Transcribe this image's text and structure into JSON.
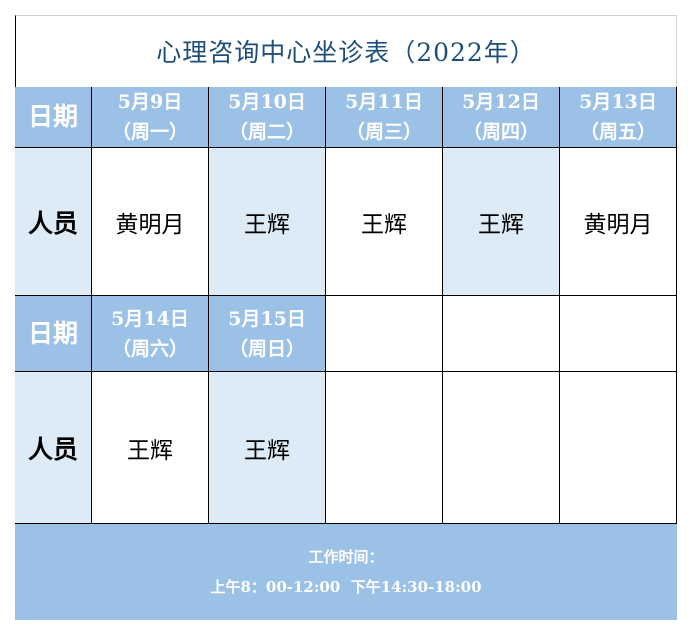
{
  "title": "心理咨询中心坐诊表（2022年）",
  "date_label": "日期",
  "person_label": "人员",
  "week1": [
    {
      "date": "5月9日",
      "weekday": "（周一）",
      "person": "黄明月"
    },
    {
      "date": "5月10日",
      "weekday": "（周二）",
      "person": "王辉"
    },
    {
      "date": "5月11日",
      "weekday": "（周三）",
      "person": "王辉"
    },
    {
      "date": "5月12日",
      "weekday": "（周四）",
      "person": "王辉"
    },
    {
      "date": "5月13日",
      "weekday": "（周五）",
      "person": "黄明月"
    }
  ],
  "week2": [
    {
      "date": "5月14日",
      "weekday": "（周六）",
      "person": "王辉"
    },
    {
      "date": "5月15日",
      "weekday": "（周日）",
      "person": "王辉"
    }
  ],
  "footer": {
    "line1": "工作时间：",
    "line2": "上午8：00-12:00  下午14:30-18:00"
  },
  "colors": {
    "header": "#9bc2e6",
    "light": "#ddebf7",
    "title": "#1f4e79"
  }
}
